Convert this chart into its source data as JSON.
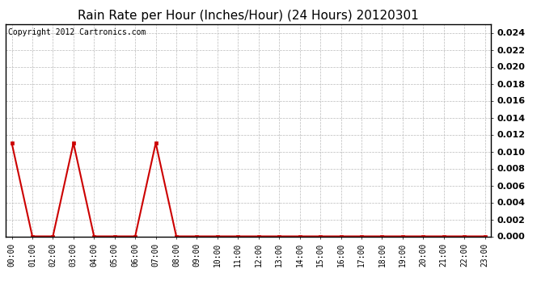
{
  "title": "Rain Rate per Hour (Inches/Hour) (24 Hours) 20120301",
  "copyright": "Copyright 2012 Cartronics.com",
  "x_labels": [
    "00:00",
    "01:00",
    "02:00",
    "03:00",
    "04:00",
    "05:00",
    "06:00",
    "07:00",
    "08:00",
    "09:00",
    "10:00",
    "11:00",
    "12:00",
    "13:00",
    "14:00",
    "15:00",
    "16:00",
    "17:00",
    "18:00",
    "19:00",
    "20:00",
    "21:00",
    "22:00",
    "23:00"
  ],
  "y_values": [
    0.011,
    0.0,
    0.0,
    0.011,
    0.0,
    0.0,
    0.0,
    0.011,
    0.0,
    0.0,
    0.0,
    0.0,
    0.0,
    0.0,
    0.0,
    0.0,
    0.0,
    0.0,
    0.0,
    0.0,
    0.0,
    0.0,
    0.0,
    0.0
  ],
  "line_color": "#cc0000",
  "marker_color": "#cc0000",
  "bg_color": "#ffffff",
  "plot_bg_color": "#ffffff",
  "grid_color": "#bbbbbb",
  "ylim": [
    0,
    0.025
  ],
  "yticks": [
    0.0,
    0.002,
    0.004,
    0.006,
    0.008,
    0.01,
    0.012,
    0.014,
    0.016,
    0.018,
    0.02,
    0.022,
    0.024
  ],
  "title_fontsize": 11,
  "copyright_fontsize": 7,
  "tick_fontsize": 7,
  "ytick_fontsize": 8
}
